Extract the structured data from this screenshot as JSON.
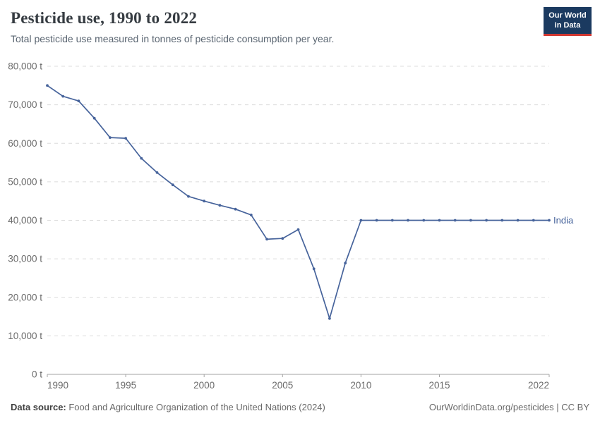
{
  "header": {
    "title": "Pesticide use, 1990 to 2022",
    "subtitle": "Total pesticide use measured in tonnes of pesticide consumption per year.",
    "logo": {
      "line1": "Our World",
      "line2": "in Data",
      "bg_color": "#1b3a60",
      "accent_color": "#d13832"
    }
  },
  "chart_data": {
    "type": "line",
    "title": "Pesticide use, 1990 to 2022",
    "xlabel": "",
    "ylabel": "",
    "unit": "t",
    "grid": "horizontal-dashed",
    "legend_position": "end-of-line",
    "ylim": [
      0,
      80000
    ],
    "yticks": [
      0,
      10000,
      20000,
      30000,
      40000,
      50000,
      60000,
      70000,
      80000
    ],
    "xticks": [
      1990,
      1995,
      2000,
      2005,
      2010,
      2015,
      2022
    ],
    "x": [
      1990,
      1991,
      1992,
      1993,
      1994,
      1995,
      1996,
      1997,
      1998,
      1999,
      2000,
      2001,
      2002,
      2003,
      2004,
      2005,
      2006,
      2007,
      2008,
      2009,
      2010,
      2011,
      2012,
      2013,
      2014,
      2015,
      2016,
      2017,
      2018,
      2019,
      2020,
      2021,
      2022
    ],
    "series": [
      {
        "name": "India",
        "color": "#46639b",
        "values": [
          75000,
          72200,
          71000,
          66500,
          61500,
          61300,
          56100,
          52400,
          49200,
          46200,
          45000,
          43900,
          42900,
          41400,
          35100,
          35300,
          37600,
          27400,
          14500,
          28900,
          40000,
          40000,
          40000,
          40000,
          40000,
          40000,
          40000,
          40000,
          40000,
          40000,
          40000,
          40000,
          40000
        ]
      }
    ]
  },
  "footer": {
    "source_label": "Data source:",
    "source_text": " Food and Agriculture Organization of the United Nations (2024)",
    "credit": "OurWorldinData.org/pesticides | CC BY"
  }
}
